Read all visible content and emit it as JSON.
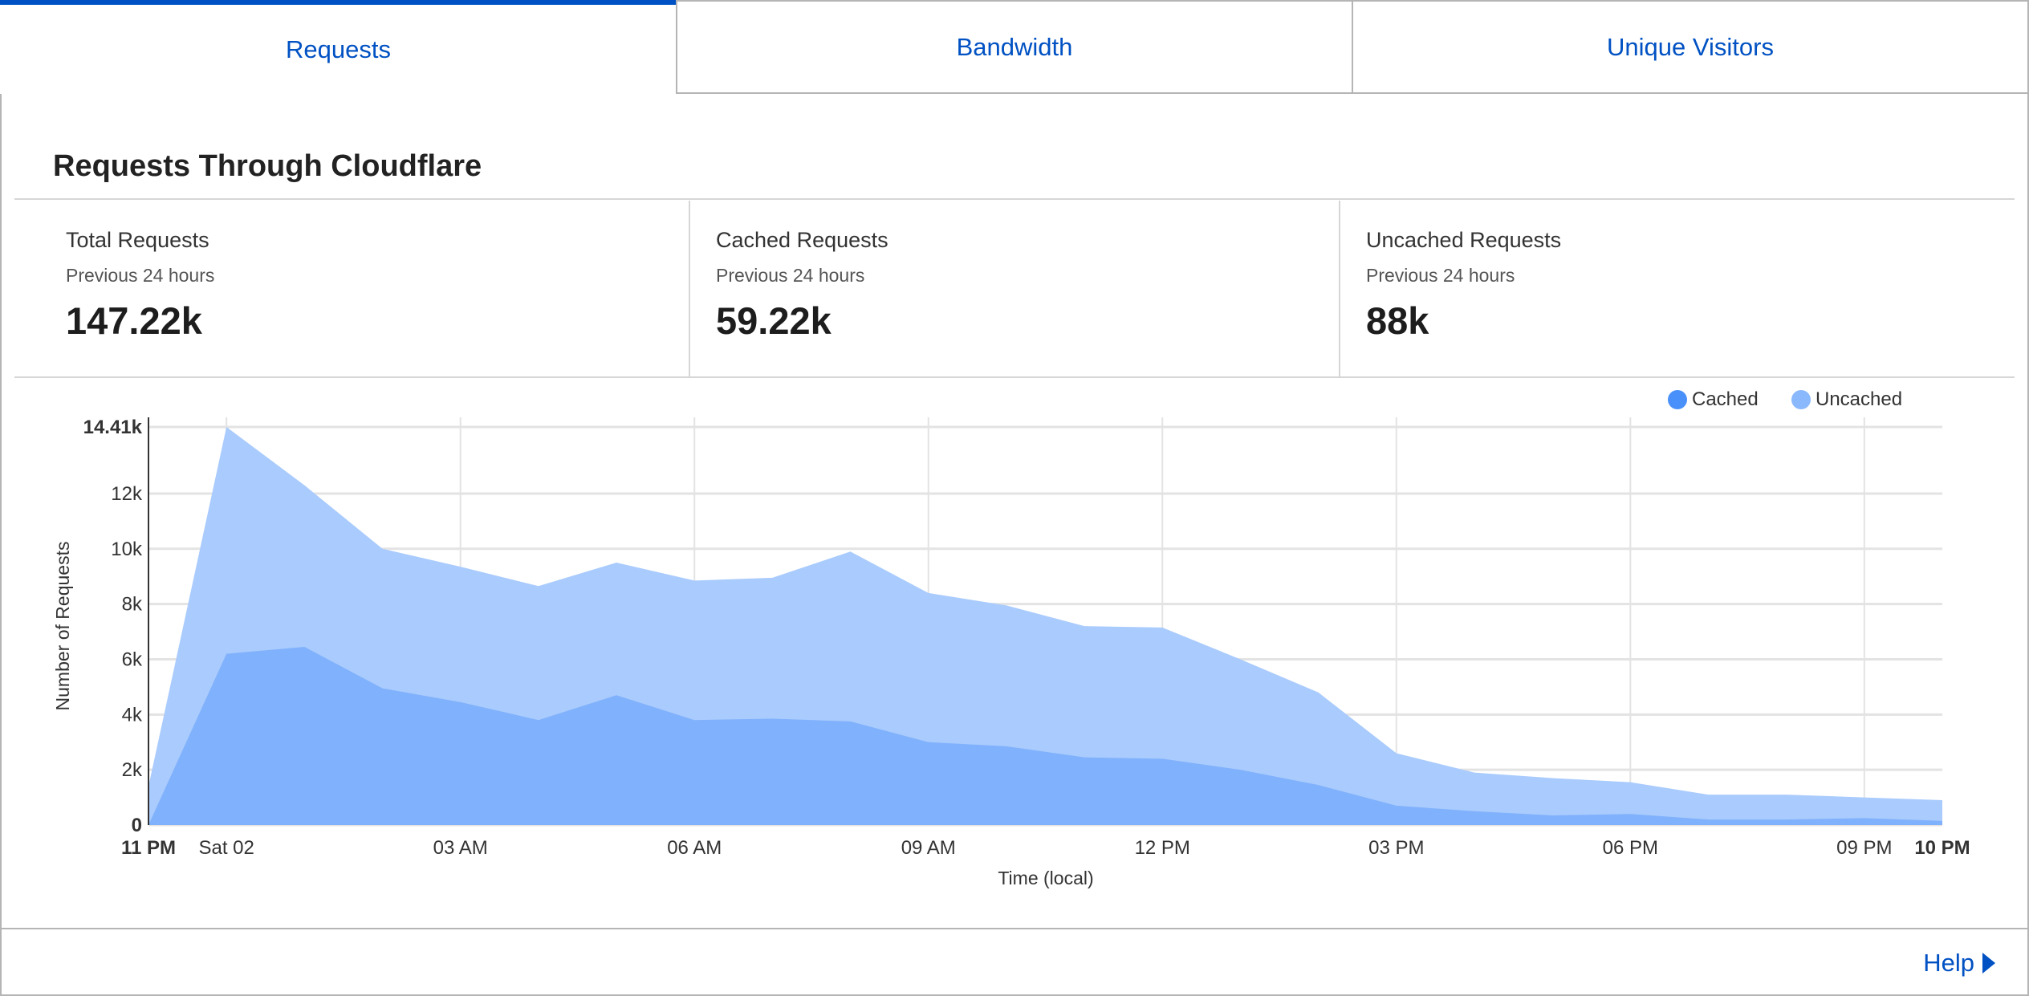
{
  "tabs": [
    {
      "label": "Requests",
      "active": true
    },
    {
      "label": "Bandwidth",
      "active": false
    },
    {
      "label": "Unique Visitors",
      "active": false
    }
  ],
  "section_title": "Requests Through Cloudflare",
  "stats": [
    {
      "label": "Total Requests",
      "period": "Previous 24 hours",
      "value": "147.22k"
    },
    {
      "label": "Cached Requests",
      "period": "Previous 24 hours",
      "value": "59.22k"
    },
    {
      "label": "Uncached Requests",
      "period": "Previous 24 hours",
      "value": "88k"
    }
  ],
  "help_label": "Help",
  "colors": {
    "accent": "#0051c3",
    "cached_area": "#80b1fc",
    "uncached_area": "#a9cbfd",
    "cached_legend": "#4a90fa",
    "uncached_legend": "#8ab8fd"
  },
  "chart_data": {
    "type": "area",
    "stacked": true,
    "xlabel": "Time (local)",
    "ylabel": "Number of Requests",
    "x": [
      "11 PM",
      "00",
      "01",
      "02",
      "03",
      "04",
      "05",
      "06",
      "07",
      "08",
      "09",
      "10",
      "11",
      "12",
      "13",
      "14",
      "15",
      "16",
      "17",
      "18",
      "19",
      "20",
      "21",
      "22"
    ],
    "x_tick_labels": [
      {
        "at": 0,
        "label": "11 PM",
        "bold": true
      },
      {
        "at": 1,
        "label": "Sat 02"
      },
      {
        "at": 4,
        "label": "03 AM"
      },
      {
        "at": 7,
        "label": "06 AM"
      },
      {
        "at": 10,
        "label": "09 AM"
      },
      {
        "at": 13,
        "label": "12 PM"
      },
      {
        "at": 16,
        "label": "03 PM"
      },
      {
        "at": 19,
        "label": "06 PM"
      },
      {
        "at": 22,
        "label": "09 PM"
      },
      {
        "at": 23,
        "label": "10 PM",
        "bold": true
      }
    ],
    "y_tick_labels": [
      {
        "v": 0,
        "label": "0",
        "bold": true
      },
      {
        "v": 2000,
        "label": "2k"
      },
      {
        "v": 4000,
        "label": "4k"
      },
      {
        "v": 6000,
        "label": "6k"
      },
      {
        "v": 8000,
        "label": "8k"
      },
      {
        "v": 10000,
        "label": "10k"
      },
      {
        "v": 12000,
        "label": "12k"
      },
      {
        "v": 14410,
        "label": "14.41k",
        "bold": true
      }
    ],
    "ylim": [
      0,
      14410
    ],
    "grid": true,
    "legend_position": "top-right",
    "series": [
      {
        "name": "Cached",
        "values": [
          0,
          6200,
          6450,
          4950,
          4450,
          3800,
          4700,
          3800,
          3850,
          3750,
          3000,
          2850,
          2450,
          2400,
          2000,
          1450,
          700,
          500,
          350,
          400,
          200,
          200,
          250,
          150
        ]
      },
      {
        "name": "Uncached",
        "values": [
          1400,
          8210,
          5850,
          5050,
          4900,
          4850,
          4800,
          5050,
          5100,
          6150,
          5400,
          5100,
          4750,
          4750,
          4000,
          3350,
          1900,
          1400,
          1350,
          1150,
          900,
          900,
          750,
          750
        ]
      }
    ]
  }
}
